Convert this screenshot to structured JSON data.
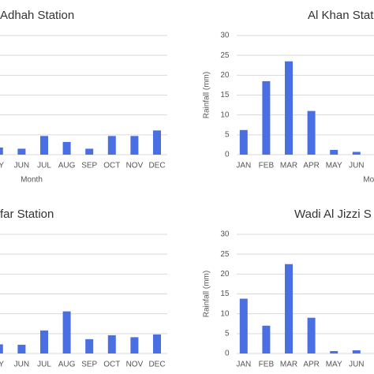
{
  "chart_data": [
    {
      "type": "bar",
      "title": "Adhah Station",
      "xlabel": "Month",
      "categories": [
        "AY",
        "JUN",
        "JUL",
        "AUG",
        "SEP",
        "OCT",
        "NOV",
        "DEC"
      ],
      "values": [
        1.8,
        1.5,
        4.7,
        3.2,
        1.5,
        4.7,
        4.7,
        6.1
      ],
      "color": "#4a6fe3",
      "ylim": [
        0,
        30
      ],
      "yticks": [
        0,
        5,
        10,
        15,
        20,
        25,
        30
      ],
      "grid": true
    },
    {
      "type": "bar",
      "title": "Al Khan Stat",
      "xlabel": "Mon",
      "ylabel": "Rainfall (mm)",
      "categories": [
        "JAN",
        "FEB",
        "MAR",
        "APR",
        "MAY",
        "JUN"
      ],
      "values": [
        6.2,
        18.5,
        23.5,
        11,
        1.2,
        0.7
      ],
      "color": "#4a6fe3",
      "ylim": [
        0,
        30
      ],
      "yticks": [
        0,
        5,
        10,
        15,
        20,
        25,
        30
      ],
      "grid": true
    },
    {
      "type": "bar",
      "title": "far Station",
      "categories": [
        "AY",
        "JUN",
        "JUL",
        "AUG",
        "SEP",
        "OCT",
        "NOV",
        "DEC"
      ],
      "values": [
        2.3,
        2.2,
        5.8,
        10.6,
        3.6,
        4.6,
        4.1,
        4.8
      ],
      "color": "#4a6fe3",
      "ylim": [
        0,
        30
      ],
      "yticks": [
        0,
        5,
        10,
        15,
        20,
        25,
        30
      ],
      "grid": true
    },
    {
      "type": "bar",
      "title": "Wadi Al Jizzi S",
      "ylabel": "Rainfall (mm)",
      "categories": [
        "JAN",
        "FEB",
        "MAR",
        "APR",
        "MAY",
        "JUN"
      ],
      "values": [
        13.8,
        7,
        22.5,
        9,
        0.6,
        0.8
      ],
      "color": "#4a6fe3",
      "ylim": [
        0,
        30
      ],
      "yticks": [
        0,
        5,
        10,
        15,
        20,
        25,
        30
      ],
      "grid": true
    }
  ]
}
